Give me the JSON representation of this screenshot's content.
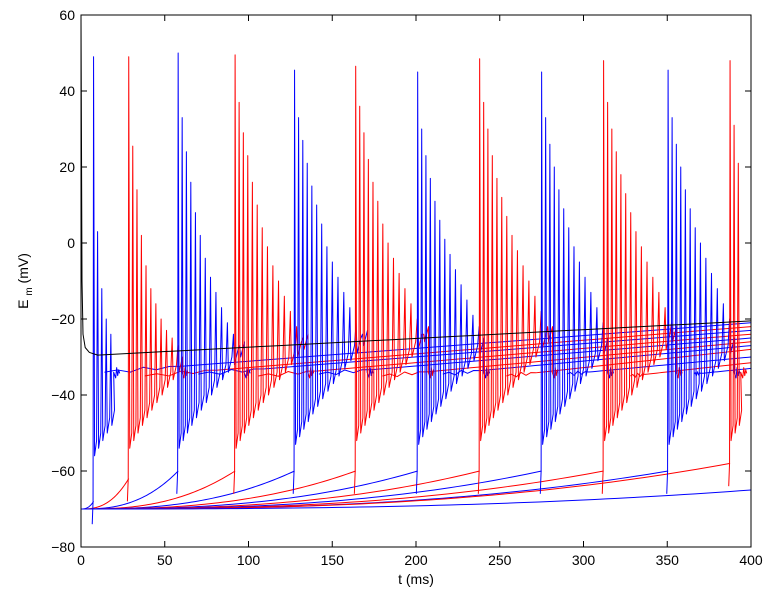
{
  "chart_data": {
    "type": "line",
    "title": "",
    "xlabel": "t (ms)",
    "ylabel": {
      "main": "E",
      "subscript": "m",
      "suffix": " (mV)"
    },
    "xlim": [
      0,
      400
    ],
    "ylim": [
      -80,
      60
    ],
    "xticks": [
      0,
      50,
      100,
      150,
      200,
      250,
      300,
      350,
      400
    ],
    "yticks": [
      -80,
      -60,
      -40,
      -20,
      0,
      20,
      40,
      60
    ],
    "grid": false,
    "legend": "none",
    "colors": {
      "red": "#ff0000",
      "blue": "#0000ff",
      "black": "#000000"
    },
    "bursts": [
      {
        "color": "blue",
        "t0": 7.5,
        "start_v": -68,
        "prev_end": 0,
        "spikes": [
          49,
          3,
          -12,
          -20,
          -24
        ]
      },
      {
        "color": "red",
        "t0": 28.5,
        "start_v": -62,
        "prev_end": 2,
        "spikes": [
          49,
          25.5,
          14,
          2,
          -6,
          -12,
          -16,
          -20,
          -23,
          -25,
          -27
        ]
      },
      {
        "color": "blue",
        "t0": 58,
        "start_v": -60,
        "prev_end": 2,
        "spikes": [
          50,
          33,
          24,
          16,
          8,
          2,
          -4,
          -9,
          -13,
          -17,
          -21,
          -24,
          -27
        ]
      },
      {
        "color": "red",
        "t0": 92,
        "start_v": -60,
        "prev_end": 2,
        "spikes": [
          49.5,
          37,
          29,
          23,
          16,
          10,
          4,
          -1,
          -6,
          -10,
          -14,
          -18,
          -22,
          -25
        ]
      },
      {
        "color": "blue",
        "t0": 127.5,
        "start_v": -60,
        "prev_end": 3,
        "spikes": [
          45.5,
          33,
          27,
          21,
          15,
          10,
          5,
          -1,
          -5,
          -9,
          -13,
          -17,
          -21,
          -24
        ]
      },
      {
        "color": "red",
        "t0": 164,
        "start_v": -60,
        "prev_end": 4,
        "spikes": [
          46.5,
          36,
          29,
          22,
          16,
          11,
          5,
          0,
          -4,
          -8,
          -12,
          -16,
          -20,
          -24
        ]
      },
      {
        "color": "blue",
        "t0": 201,
        "start_v": -60,
        "prev_end": 3,
        "spikes": [
          45,
          30,
          23,
          17,
          11,
          6,
          1,
          -3,
          -7,
          -11,
          -15,
          -19,
          -22
        ]
      },
      {
        "color": "red",
        "t0": 238,
        "start_v": -60,
        "prev_end": 4,
        "spikes": [
          48.5,
          37,
          30,
          23,
          17,
          12,
          7,
          2,
          -2,
          -6,
          -10,
          -14,
          -18,
          -22
        ]
      },
      {
        "color": "blue",
        "t0": 275,
        "start_v": -60,
        "prev_end": 3,
        "spikes": [
          45,
          33,
          26,
          20,
          14,
          9,
          4,
          -1,
          -5,
          -9,
          -13,
          -17,
          -21
        ]
      },
      {
        "color": "red",
        "t0": 312,
        "start_v": -60,
        "prev_end": 4,
        "spikes": [
          48,
          37,
          30,
          24,
          18,
          13,
          8,
          3,
          -1,
          -5,
          -9,
          -13,
          -17,
          -21
        ]
      },
      {
        "color": "blue",
        "t0": 350.5,
        "start_v": -60,
        "prev_end": 3,
        "spikes": [
          45.5,
          33,
          26,
          20,
          14,
          9,
          4,
          0,
          -4,
          -8,
          -12,
          -16,
          -20
        ]
      },
      {
        "color": "red",
        "t0": 387.5,
        "start_v": -58,
        "prev_end": 4,
        "spikes": [
          48,
          31,
          21
        ]
      }
    ],
    "subthreshold": [
      {
        "color": "blue",
        "spike_idx": 0
      },
      {
        "color": "red",
        "spike_idx": 1
      },
      {
        "color": "blue",
        "spike_idx": 2
      },
      {
        "color": "red",
        "spike_idx": 3
      },
      {
        "color": "blue",
        "spike_idx": 4
      },
      {
        "color": "red",
        "spike_idx": 5
      },
      {
        "color": "blue",
        "spike_idx": 6
      },
      {
        "color": "red",
        "spike_idx": 7
      },
      {
        "color": "blue",
        "spike_idx": 8
      },
      {
        "color": "red",
        "spike_idx": 9
      },
      {
        "color": "blue",
        "spike_idx": 10
      },
      {
        "color": "red",
        "spike_idx": 11
      },
      {
        "color": "blue",
        "spike_idx": null,
        "end_v": -65
      }
    ],
    "plateau": [
      {
        "color": "blue",
        "t_start": 14,
        "v_start": -34,
        "v_end": -21
      },
      {
        "color": "red",
        "t_start": 38,
        "v_start": -35,
        "v_end": -22
      },
      {
        "color": "blue",
        "t_start": 70,
        "v_start": -34.5,
        "v_end": -23
      },
      {
        "color": "red",
        "t_start": 106,
        "v_start": -35,
        "v_end": -24
      },
      {
        "color": "blue",
        "t_start": 142,
        "v_start": -34.5,
        "v_end": -25
      },
      {
        "color": "red",
        "t_start": 180,
        "v_start": -35,
        "v_end": -26
      },
      {
        "color": "blue",
        "t_start": 216,
        "v_start": -34.5,
        "v_end": -27
      },
      {
        "color": "red",
        "t_start": 254,
        "v_start": -35,
        "v_end": -28
      },
      {
        "color": "blue",
        "t_start": 290,
        "v_start": -34.5,
        "v_end": -30
      },
      {
        "color": "red",
        "t_start": 328,
        "v_start": -35,
        "v_end": -31.5
      },
      {
        "color": "blue",
        "t_start": 366,
        "v_start": -34.5,
        "v_end": -33
      }
    ],
    "black_trace": {
      "color": "black",
      "v_rest": -29.5,
      "v_end": -20.5
    }
  }
}
